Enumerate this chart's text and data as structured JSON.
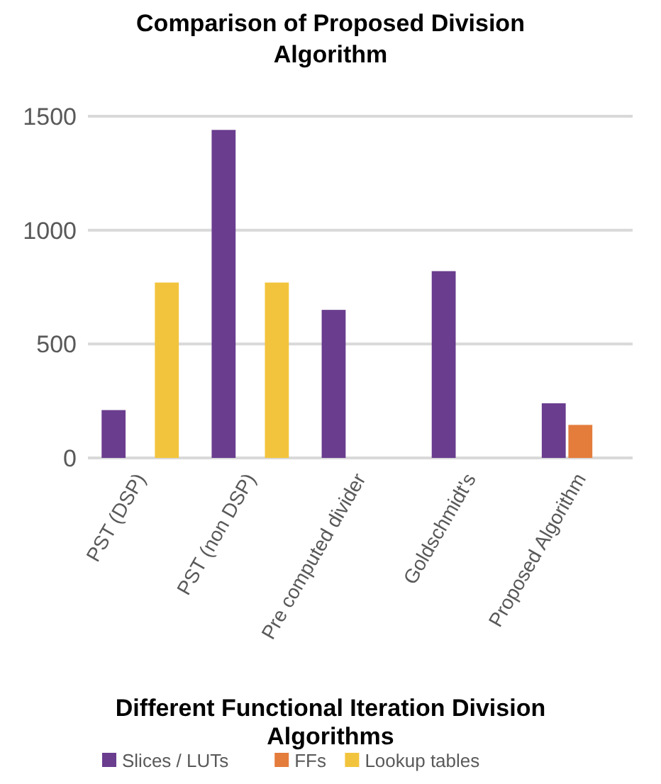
{
  "chart_data": {
    "type": "bar",
    "title": "Comparison of Proposed Division Algorithm",
    "xlabel": "Different Functional Iteration Division Algorithms",
    "categories": [
      "PST (DSP)",
      "PST (non DSP)",
      "Pre computed divider",
      "Goldschmidt's",
      "Proposed Algorithm"
    ],
    "series": [
      {
        "name": "Slices / LUTs",
        "color": "#6a3d8f",
        "values": [
          210,
          1440,
          650,
          820,
          240
        ]
      },
      {
        "name": "FFs",
        "color": "#e47c3c",
        "values": [
          null,
          null,
          null,
          null,
          145
        ]
      },
      {
        "name": "Lookup tables",
        "color": "#f2c43d",
        "values": [
          770,
          770,
          null,
          null,
          null
        ]
      }
    ],
    "ylim": [
      0,
      1500
    ],
    "yticks": [
      0,
      500,
      1000,
      1500
    ],
    "grid": "y",
    "legend": "bottom"
  }
}
